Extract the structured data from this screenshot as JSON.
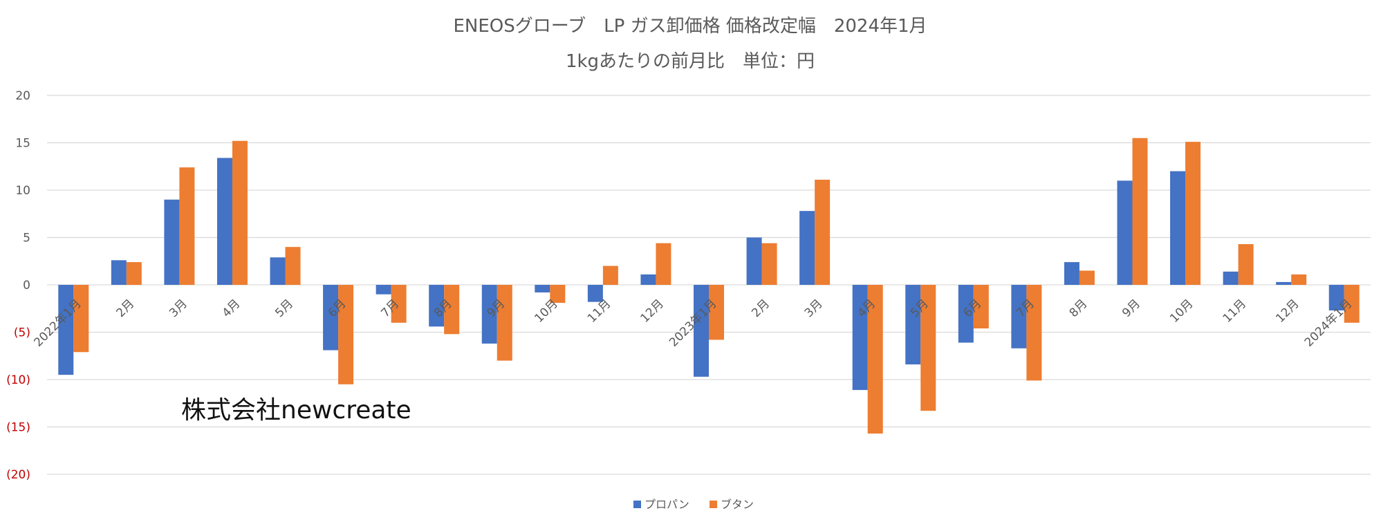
{
  "chart_data": {
    "type": "bar",
    "title": "ENEOSグローブ　LP ガス卸価格 価格改定幅　2024年1月",
    "subtitle": "1kgあたりの前月比　単位：円",
    "categories": [
      "2022年1月",
      "2月",
      "3月",
      "4月",
      "5月",
      "6月",
      "7月",
      "8月",
      "9月",
      "10月",
      "11月",
      "12月",
      "2023年1月",
      "2月",
      "3月",
      "4月",
      "5月",
      "6月",
      "7月",
      "8月",
      "9月",
      "10月",
      "11月",
      "12月",
      "2024年1月"
    ],
    "series": [
      {
        "name": "プロパン",
        "color": "#4472C4",
        "values": [
          -9.5,
          2.6,
          9,
          13.4,
          2.9,
          -6.9,
          -1,
          -4.4,
          -6.2,
          -0.8,
          -1.8,
          1.1,
          -9.7,
          5,
          7.8,
          -11.1,
          -8.4,
          -6.1,
          -6.7,
          2.4,
          11,
          12,
          1.4,
          0.3,
          -2.7
        ]
      },
      {
        "name": "ブタン",
        "color": "#ED7D31",
        "values": [
          -7.1,
          2.4,
          12.4,
          15.2,
          4,
          -10.5,
          -4,
          -5.2,
          -8,
          -1.9,
          2,
          4.4,
          -5.8,
          4.4,
          11.1,
          -15.7,
          -13.3,
          -4.6,
          -10.1,
          1.5,
          15.5,
          15.1,
          4.3,
          1.1,
          -4
        ]
      }
    ],
    "ylim": [
      -20,
      20
    ],
    "yticks": [
      {
        "value": 20,
        "label": "20"
      },
      {
        "value": 15,
        "label": "15"
      },
      {
        "value": 10,
        "label": "10"
      },
      {
        "value": 5,
        "label": "5"
      },
      {
        "value": 0,
        "label": "0"
      },
      {
        "value": -5,
        "label": "(5)"
      },
      {
        "value": -10,
        "label": "(10)"
      },
      {
        "value": -15,
        "label": "(15)"
      },
      {
        "value": -20,
        "label": "(20)"
      }
    ],
    "grid": true,
    "legend_position": "bottom",
    "negative_tick_color": "#C00000",
    "positive_tick_color": "#595959",
    "gridline_color": "#D9D9D9"
  },
  "watermark": "株式会社newcreate"
}
